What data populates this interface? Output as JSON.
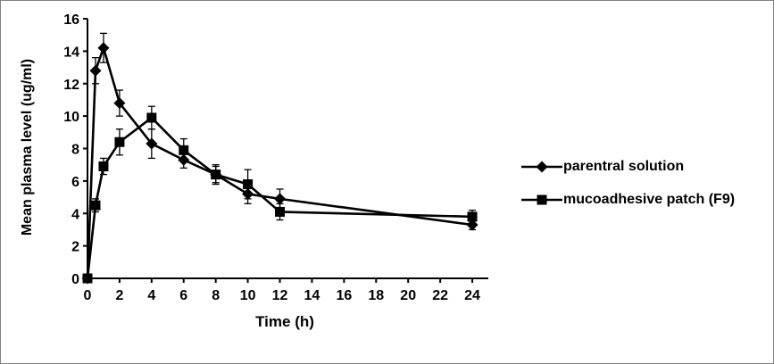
{
  "frame": {
    "background": "#ffffff",
    "border_color": "#808080"
  },
  "chart_data": {
    "type": "line",
    "title": "",
    "xlabel": "Time (h)",
    "ylabel": "Mean plasma level (ug/ml)",
    "xlim": [
      0,
      25
    ],
    "ylim": [
      0,
      16
    ],
    "x_ticks": [
      0,
      2,
      4,
      6,
      8,
      10,
      12,
      14,
      16,
      18,
      20,
      22,
      24
    ],
    "y_ticks": [
      0,
      2,
      4,
      6,
      8,
      10,
      12,
      14,
      16
    ],
    "grid": false,
    "legend_position": "right",
    "line_color": "#000000",
    "marker_color": "#000000",
    "error_bars": true,
    "series": [
      {
        "name": "parentral solution",
        "marker": "diamond",
        "x": [
          0,
          0.5,
          1,
          2,
          4,
          6,
          8,
          10,
          12,
          24
        ],
        "y": [
          0,
          12.8,
          14.2,
          10.8,
          8.3,
          7.3,
          6.4,
          5.2,
          4.9,
          3.3
        ],
        "yerr": [
          0,
          0.8,
          0.9,
          0.8,
          0.9,
          0.5,
          0.5,
          0.6,
          0.6,
          0.3
        ]
      },
      {
        "name": "mucoadhesive patch (F9)",
        "marker": "square",
        "x": [
          0,
          0.5,
          1,
          2,
          4,
          6,
          8,
          10,
          12,
          24
        ],
        "y": [
          0,
          4.5,
          6.9,
          8.4,
          9.9,
          7.9,
          6.4,
          5.8,
          4.1,
          3.8
        ],
        "yerr": [
          0,
          0.4,
          0.5,
          0.8,
          0.7,
          0.7,
          0.6,
          0.9,
          0.5,
          0.4
        ]
      }
    ]
  }
}
